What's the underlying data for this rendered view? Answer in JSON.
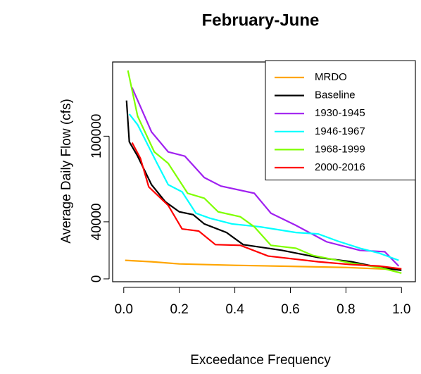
{
  "chart_data": {
    "type": "line",
    "title": "February-June",
    "x_label": "Exceedance Frequency",
    "y_label": "Average Daily Flow (cfs)",
    "xlim": [
      -0.04,
      1.05
    ],
    "ylim": [
      -2000,
      152000
    ],
    "xticks": [
      {
        "value": 0,
        "label": "0.0"
      },
      0.2,
      0.4,
      0.6,
      0.8,
      {
        "value": 1,
        "label": "1.0"
      }
    ],
    "yticks": [
      0,
      40000,
      100000
    ],
    "legend": "top-right",
    "series": [
      {
        "name": "MRDO",
        "color": "#ffa500",
        "x": [
          0.005,
          0.1,
          0.2,
          0.4,
          0.6,
          0.8,
          0.99
        ],
        "values": [
          13000,
          12000,
          10500,
          9500,
          8800,
          8000,
          6500
        ]
      },
      {
        "name": "Baseline",
        "color": "#000000",
        "x": [
          0.01,
          0.02,
          0.05,
          0.1,
          0.15,
          0.2,
          0.25,
          0.29,
          0.37,
          0.43,
          0.57,
          0.7,
          0.82,
          0.92,
          1.0
        ],
        "values": [
          125000,
          96000,
          86000,
          66000,
          54000,
          47000,
          45000,
          38500,
          32500,
          24000,
          20000,
          15000,
          12000,
          8000,
          6000
        ]
      },
      {
        "name": "1930-1945",
        "color": "#a020f0",
        "x": [
          0.03,
          0.1,
          0.16,
          0.22,
          0.29,
          0.35,
          0.47,
          0.53,
          0.62,
          0.73,
          0.85,
          0.94,
          0.99
        ],
        "values": [
          134000,
          103000,
          89000,
          86000,
          71000,
          65000,
          60000,
          46000,
          37500,
          26000,
          20000,
          19000,
          9000
        ]
      },
      {
        "name": "1946-1967",
        "color": "#00ffff",
        "x": [
          0.02,
          0.05,
          0.12,
          0.16,
          0.21,
          0.26,
          0.31,
          0.39,
          0.49,
          0.62,
          0.7,
          0.77,
          0.85,
          0.92,
          0.99
        ],
        "values": [
          115500,
          108000,
          81000,
          66000,
          61000,
          46000,
          42500,
          38500,
          36500,
          32500,
          31500,
          26500,
          21500,
          18000,
          13000
        ]
      },
      {
        "name": "1968-1999",
        "color": "#7fff00",
        "x": [
          0.015,
          0.05,
          0.11,
          0.16,
          0.23,
          0.29,
          0.34,
          0.42,
          0.47,
          0.53,
          0.62,
          0.68,
          0.82,
          0.92,
          1.0
        ],
        "values": [
          146000,
          114000,
          89000,
          81000,
          60000,
          56500,
          47000,
          43500,
          36500,
          23500,
          21500,
          16500,
          11000,
          8000,
          4000
        ]
      },
      {
        "name": "2000-2016",
        "color": "#ff0000",
        "x": [
          0.03,
          0.06,
          0.09,
          0.16,
          0.21,
          0.27,
          0.33,
          0.42,
          0.52,
          0.7,
          0.82,
          0.92,
          1.0
        ],
        "values": [
          95500,
          84500,
          64500,
          51500,
          35000,
          33500,
          24000,
          23500,
          16000,
          12000,
          10000,
          9000,
          7000
        ]
      }
    ]
  }
}
